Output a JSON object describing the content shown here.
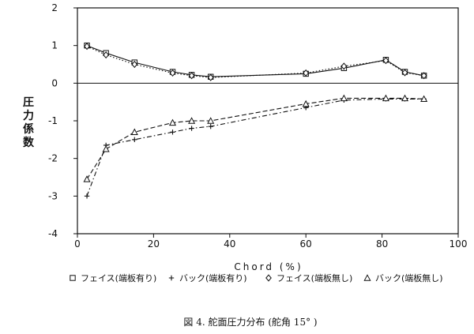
{
  "chart_data": {
    "type": "line",
    "caption": "図 4. 舵面圧力分布 (舵角 15° )",
    "xlabel": "Chord (%)",
    "ylabel": "圧力係数",
    "xlim": [
      0,
      100
    ],
    "ylim": [
      -4,
      2
    ],
    "xticks": [
      0,
      20,
      40,
      60,
      80,
      100
    ],
    "yticks": [
      2,
      1,
      0,
      -1,
      -2,
      -3,
      -4
    ],
    "zero_line": true,
    "legend_position": "bottom",
    "series": [
      {
        "name": "フェイス(端板有り)",
        "marker": "square",
        "line": "solid",
        "x": [
          2.5,
          7.5,
          15,
          25,
          30,
          35,
          60,
          70,
          81,
          86,
          91
        ],
        "y": [
          1.0,
          0.8,
          0.55,
          0.3,
          0.22,
          0.17,
          0.25,
          0.4,
          0.62,
          0.3,
          0.2
        ]
      },
      {
        "name": "バック(端板有り)",
        "marker": "plus",
        "line": "dashdot",
        "x": [
          2.5,
          7.5,
          15,
          25,
          30,
          35,
          60,
          70,
          81,
          86,
          91
        ],
        "y": [
          -3.0,
          -1.65,
          -1.5,
          -1.3,
          -1.2,
          -1.15,
          -0.65,
          -0.45,
          -0.42,
          -0.42,
          -0.42
        ]
      },
      {
        "name": "フェイス(端板無し)",
        "marker": "diamond",
        "line": "dotted",
        "x": [
          2.5,
          7.5,
          15,
          25,
          30,
          35,
          60,
          70,
          81,
          86,
          91
        ],
        "y": [
          0.98,
          0.75,
          0.5,
          0.27,
          0.2,
          0.15,
          0.27,
          0.45,
          0.6,
          0.28,
          0.2
        ]
      },
      {
        "name": "バック(端板無し)",
        "marker": "triangle",
        "line": "dashed",
        "x": [
          2.5,
          7.5,
          15,
          25,
          30,
          35,
          60,
          70,
          81,
          86,
          91
        ],
        "y": [
          -2.55,
          -1.75,
          -1.3,
          -1.05,
          -1.0,
          -1.0,
          -0.55,
          -0.4,
          -0.4,
          -0.4,
          -0.42
        ]
      }
    ]
  }
}
